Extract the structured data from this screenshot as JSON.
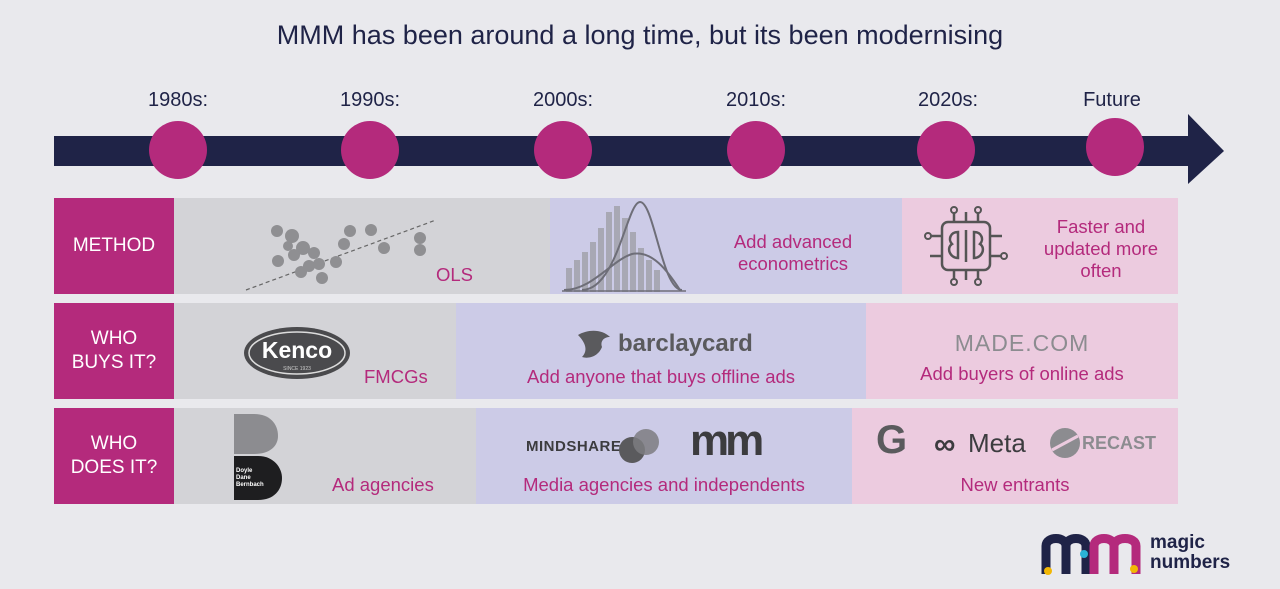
{
  "title": "MMM has been around a long time, but its been modernising",
  "timeline": {
    "eras": [
      "1980s:",
      "1990s:",
      "2000s:",
      "2010s:",
      "2020s:",
      "Future"
    ],
    "colors": {
      "arrow": "#1f2347",
      "node": "#b42a7c"
    }
  },
  "rows": {
    "method": {
      "header": "METHOD",
      "segments": [
        {
          "label": "OLS"
        },
        {
          "label": "Add advanced econometrics"
        },
        {
          "label": "Faster and updated more often"
        }
      ]
    },
    "who_buys": {
      "header": "WHO BUYS IT?",
      "segments": [
        {
          "label": "FMCGs",
          "logos": [
            "Kenco",
            "SINCE 1923"
          ]
        },
        {
          "label": "Add anyone that buys offline ads",
          "logos": [
            "barclaycard"
          ]
        },
        {
          "label": "Add buyers of online ads",
          "logos": [
            "MADE.COM"
          ]
        }
      ]
    },
    "who_does": {
      "header": "WHO DOES IT?",
      "segments": [
        {
          "label": "Ad agencies",
          "logos": [
            "Doyle Dane Bernbach"
          ]
        },
        {
          "label": "Media agencies and independents",
          "logos": [
            "MINDSHARE",
            "mm"
          ]
        },
        {
          "label": "New entrants",
          "logos": [
            "G",
            "Meta",
            "RECAST"
          ]
        }
      ]
    }
  },
  "brand": {
    "name": "magic numbers"
  },
  "colors": {
    "accent": "#b42a7c",
    "navy": "#1f2347",
    "grey": "#d3d3d7",
    "lavender": "#cccbe7",
    "pink": "#eccbdf"
  }
}
